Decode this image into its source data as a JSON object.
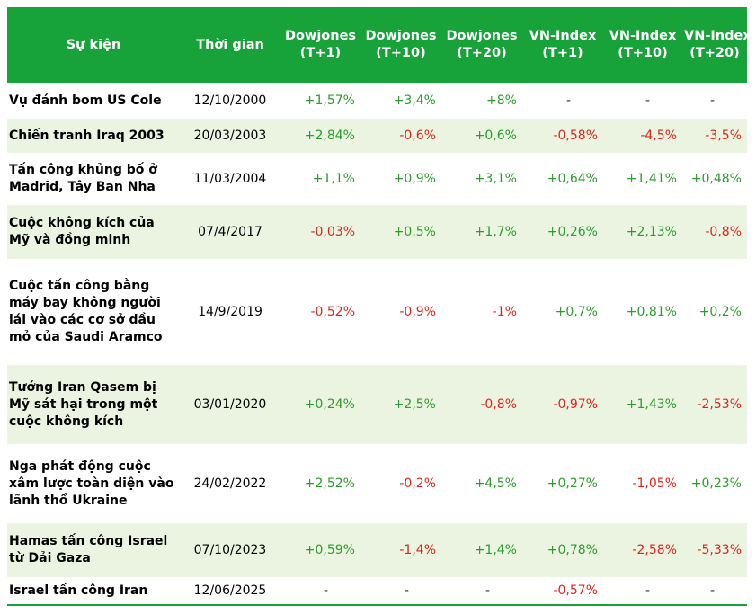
{
  "headers": [
    {
      "line1": "Sự kiện",
      "line2": ""
    },
    {
      "line1": "Thời gian",
      "line2": ""
    },
    {
      "line1": "Dowjones",
      "line2": "(T+1)"
    },
    {
      "line1": "Dowjones",
      "line2": "(T+10)"
    },
    {
      "line1": "Dowjones",
      "line2": "(T+20)"
    },
    {
      "line1": "VN-Index",
      "line2": "(T+1)"
    },
    {
      "line1": "VN-Index",
      "line2": "(T+10)"
    },
    {
      "line1": "VN-Index",
      "line2": "(T+20)"
    }
  ],
  "rows": [
    {
      "event": "Vụ đánh bom US Cole",
      "date": "12/10/2000",
      "values": [
        "+1,57%",
        "+3,4%",
        "+8%",
        "-",
        "-",
        "-"
      ]
    },
    {
      "event": "Chiến tranh Iraq 2003",
      "date": "20/03/2003",
      "values": [
        "+2,84%",
        "-0,6%",
        "+0,6%",
        "-0,58%",
        "-4,5%",
        "-3,5%"
      ]
    },
    {
      "event": "Tấn công khủng bố ở Madrid, Tây Ban Nha",
      "date": "11/03/2004",
      "values": [
        "+1,1%",
        "+0,9%",
        "+3,1%",
        "+0,64%",
        "+1,41%",
        "+0,48%"
      ]
    },
    {
      "event": "Cuộc không kích của Mỹ và đồng minh",
      "date": "07/4/2017",
      "values": [
        "-0,03%",
        "+0,5%",
        "+1,7%",
        "+0,26%",
        "+2,13%",
        "-0,8%"
      ]
    },
    {
      "event": "Cuộc tấn công bằng máy bay không người lái vào các cơ sở dầu mỏ của Saudi Aramco",
      "date": "14/9/2019",
      "values": [
        "-0,52%",
        "-0,9%",
        "-1%",
        "+0,7%",
        "+0,81%",
        "+0,2%"
      ]
    },
    {
      "event": "Tướng Iran Qasem bị Mỹ sát hại trong một cuộc không kích",
      "date": "03/01/2020",
      "values": [
        "+0,24%",
        "+2,5%",
        "-0,8%",
        "-0,97%",
        "+1,43%",
        "-2,53%"
      ]
    },
    {
      "event": "Nga phát động cuộc xâm lược toàn diện vào lãnh thổ Ukraine",
      "date": "24/02/2022",
      "values": [
        "+2,52%",
        "-0,2%",
        "+4,5%",
        "+0,27%",
        "-1,05%",
        "+0,23%"
      ]
    },
    {
      "event": "Hamas tấn công Israel từ Dải Gaza",
      "date": "07/10/2023",
      "values": [
        "+0,59%",
        "-1,4%",
        "+1,4%",
        "+0,78%",
        "-2,58%",
        "-5,33%"
      ]
    },
    {
      "event": "Israel tấn công Iran",
      "date": "12/06/2025",
      "values": [
        "-",
        "-",
        "-",
        "-0,57%",
        "-",
        "-"
      ]
    }
  ],
  "colors": {
    "header_bg": "#18a23a",
    "alt_row_bg": "#eaf4e0",
    "positive": "#2a9d2a",
    "negative": "#e0241b"
  }
}
